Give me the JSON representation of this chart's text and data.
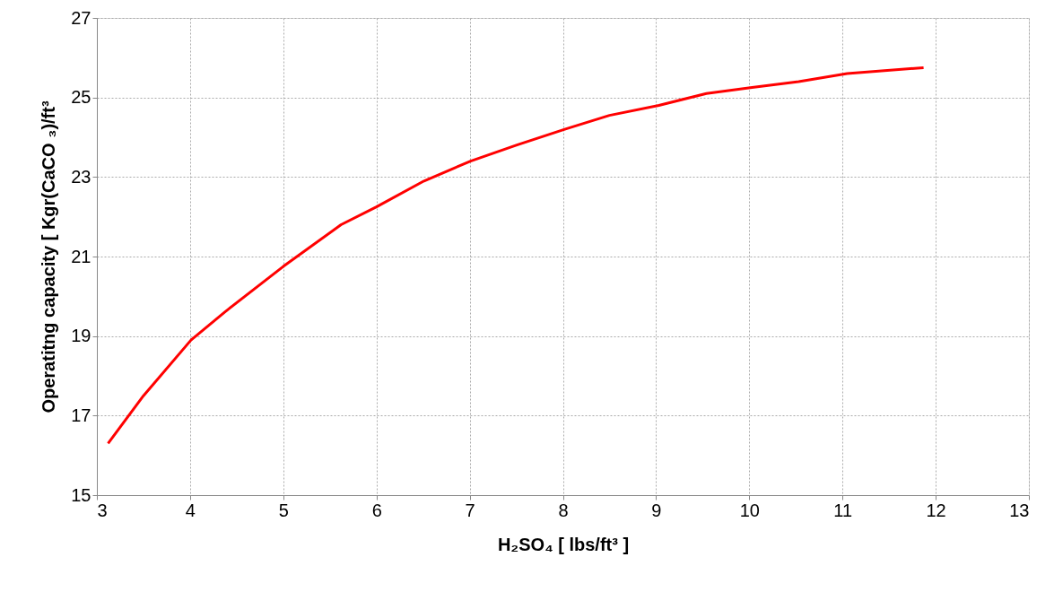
{
  "chart_data": {
    "type": "line",
    "xlabel": "H₂SO₄ [ lbs/ft³ ]",
    "ylabel": "Operatitng capacity [ Kgr(CaCO ₃)/ft³",
    "x": [
      3.12,
      3.5,
      4.01,
      4.37,
      5.0,
      5.62,
      6.0,
      6.51,
      7.01,
      7.5,
      8.02,
      8.5,
      9.03,
      9.54,
      10.03,
      10.53,
      11.05,
      11.87
    ],
    "series": [
      {
        "color": "#ff0000",
        "values": [
          16.3,
          17.5,
          18.9,
          19.6,
          20.75,
          21.8,
          22.25,
          22.9,
          23.4,
          23.8,
          24.2,
          24.55,
          24.8,
          25.1,
          25.25,
          25.4,
          25.6,
          25.75
        ]
      }
    ],
    "xlim": [
      3,
      13
    ],
    "xticks": [
      3,
      4,
      5,
      6,
      7,
      8,
      9,
      10,
      11,
      12,
      13
    ],
    "ylim": [
      15,
      27
    ],
    "yticks": [
      15,
      17,
      19,
      21,
      23,
      25,
      27
    ],
    "grid": true,
    "line_style": "solid",
    "marker": "none"
  }
}
